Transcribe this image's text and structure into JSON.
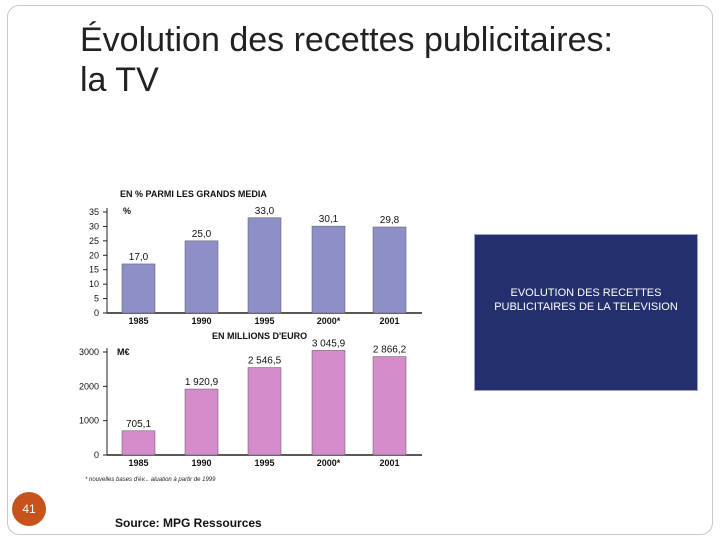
{
  "slide": {
    "title_line1": "Évolution des recettes publicitaires:",
    "title_line2": "la TV",
    "page_number": "41",
    "source": "Source: MPG Ressources"
  },
  "infobox": {
    "line1": "EVOLUTION DES RECETTES",
    "line2": "PUBLICITAIRES DE LA TELEVISION"
  },
  "colors": {
    "purple": "#8f8fc8",
    "pink": "#d48ccb",
    "accent": "#c8521c",
    "box": "#24306e"
  },
  "chart_data": [
    {
      "type": "bar",
      "title": "EN % PARMI LES GRANDS MEDIA",
      "ylabel": "%",
      "categories": [
        "1985",
        "1990",
        "1995",
        "2000*",
        "2001"
      ],
      "values": [
        17.0,
        25.0,
        33.0,
        30.1,
        29.8
      ],
      "value_labels": [
        "17,0",
        "25,0",
        "33,0",
        "30,1",
        "29,8"
      ],
      "yticks": [
        0,
        5,
        10,
        15,
        20,
        25,
        30,
        35
      ],
      "ylim": [
        0,
        35
      ]
    },
    {
      "type": "bar",
      "title": "EN MILLIONS D'EURO",
      "ylabel": "M€",
      "categories": [
        "1985",
        "1990",
        "1995",
        "2000*",
        "2001"
      ],
      "values": [
        705.1,
        1920.9,
        2546.5,
        3045.9,
        2866.2
      ],
      "value_labels": [
        "705,1",
        "1 920,9",
        "2 546,5",
        "3 045,9",
        "2 866,2"
      ],
      "yticks": [
        0,
        1000,
        2000,
        3000
      ],
      "ylim": [
        0,
        3000
      ],
      "footnote": "* nouvelles bases d'év... aluation à partir de 1999"
    }
  ]
}
